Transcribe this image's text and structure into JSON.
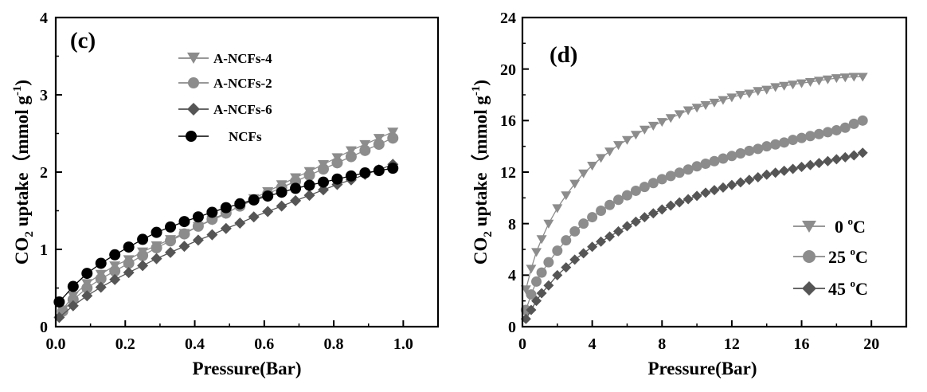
{
  "chart_data": [
    {
      "panel": "(c)",
      "type": "scatter",
      "xlabel": "Pressure(Bar)",
      "ylabel": "CO2 uptake（mmol g-1)",
      "ylabel_parts": {
        "pre": "CO",
        "sub": "2",
        "mid": " uptake（mmol g",
        "sup": "-1",
        "post": ")"
      },
      "xlim": [
        0,
        1.1
      ],
      "ylim": [
        0,
        4
      ],
      "xticks": [
        "0.0",
        "0.2",
        "0.4",
        "0.6",
        "0.8",
        "1.0"
      ],
      "yticks": [
        "0",
        "1",
        "2",
        "3",
        "4"
      ],
      "legend_position": "top-center",
      "legend": [
        "A-NCFs-4",
        "A-NCFs-2",
        "A-NCFs-6",
        "NCFs"
      ],
      "series": [
        {
          "name": "A-NCFs-4",
          "marker": "triangle-down",
          "color": "#8c8c8c",
          "x": [
            0.02,
            0.05,
            0.09,
            0.13,
            0.17,
            0.21,
            0.25,
            0.29,
            0.33,
            0.37,
            0.41,
            0.45,
            0.49,
            0.53,
            0.57,
            0.61,
            0.65,
            0.69,
            0.73,
            0.77,
            0.81,
            0.85,
            0.89,
            0.93,
            0.97
          ],
          "values": [
            0.22,
            0.4,
            0.56,
            0.68,
            0.79,
            0.87,
            0.97,
            1.05,
            1.13,
            1.21,
            1.3,
            1.38,
            1.46,
            1.57,
            1.66,
            1.75,
            1.84,
            1.93,
            2.01,
            2.1,
            2.19,
            2.28,
            2.36,
            2.44,
            2.52
          ]
        },
        {
          "name": "A-NCFs-2",
          "marker": "circle",
          "color": "#8c8c8c",
          "x": [
            0.02,
            0.05,
            0.09,
            0.13,
            0.17,
            0.21,
            0.25,
            0.29,
            0.33,
            0.37,
            0.41,
            0.45,
            0.49,
            0.53,
            0.57,
            0.61,
            0.65,
            0.69,
            0.73,
            0.77,
            0.81,
            0.85,
            0.89,
            0.93,
            0.97
          ],
          "values": [
            0.2,
            0.35,
            0.5,
            0.62,
            0.72,
            0.82,
            0.92,
            1.02,
            1.11,
            1.2,
            1.3,
            1.39,
            1.47,
            1.56,
            1.64,
            1.72,
            1.8,
            1.88,
            1.96,
            2.04,
            2.12,
            2.2,
            2.28,
            2.36,
            2.44
          ]
        },
        {
          "name": "A-NCFs-6",
          "marker": "diamond",
          "color": "#555555",
          "x": [
            0.01,
            0.05,
            0.09,
            0.13,
            0.17,
            0.21,
            0.25,
            0.29,
            0.33,
            0.37,
            0.41,
            0.45,
            0.49,
            0.53,
            0.57,
            0.61,
            0.65,
            0.69,
            0.73,
            0.77,
            0.81,
            0.85,
            0.89,
            0.93,
            0.97
          ],
          "values": [
            0.12,
            0.27,
            0.4,
            0.51,
            0.61,
            0.7,
            0.79,
            0.88,
            0.96,
            1.04,
            1.12,
            1.19,
            1.27,
            1.34,
            1.42,
            1.49,
            1.56,
            1.63,
            1.7,
            1.77,
            1.84,
            1.9,
            1.97,
            2.03,
            2.1
          ]
        },
        {
          "name": "NCFs",
          "marker": "circle",
          "color": "#000000",
          "x": [
            0.01,
            0.05,
            0.09,
            0.13,
            0.17,
            0.21,
            0.25,
            0.29,
            0.33,
            0.37,
            0.41,
            0.45,
            0.49,
            0.53,
            0.57,
            0.61,
            0.65,
            0.69,
            0.73,
            0.77,
            0.81,
            0.85,
            0.89,
            0.93,
            0.97
          ],
          "values": [
            0.32,
            0.52,
            0.69,
            0.82,
            0.93,
            1.03,
            1.13,
            1.22,
            1.29,
            1.36,
            1.42,
            1.48,
            1.54,
            1.59,
            1.64,
            1.69,
            1.74,
            1.79,
            1.83,
            1.87,
            1.91,
            1.95,
            1.99,
            2.02,
            2.05
          ]
        }
      ]
    },
    {
      "panel": "(d)",
      "type": "scatter",
      "xlabel": "Pressure(Bar)",
      "ylabel": "CO2 uptake（mmol g-1)",
      "ylabel_parts": {
        "pre": "CO",
        "sub": "2",
        "mid": " uptake（mmol g",
        "sup": "-1",
        "post": ")"
      },
      "xlim": [
        0,
        22
      ],
      "ylim": [
        0,
        24
      ],
      "xticks": [
        "0",
        "4",
        "8",
        "12",
        "16",
        "20"
      ],
      "yticks": [
        "0",
        "4",
        "8",
        "12",
        "16",
        "20",
        "24"
      ],
      "legend_position": "bottom-right",
      "legend": [
        "0 °C",
        "25 °C",
        "45 °C"
      ],
      "legend_parts": [
        {
          "num": "0 ",
          "deg": "o",
          "unit": "C"
        },
        {
          "num": "25 ",
          "deg": "o",
          "unit": "C"
        },
        {
          "num": "45 ",
          "deg": "o",
          "unit": "C"
        }
      ],
      "series": [
        {
          "name": "0 °C",
          "marker": "triangle-down",
          "color": "#8c8c8c",
          "x": [
            0.2,
            0.5,
            0.8,
            1.1,
            1.5,
            2,
            2.5,
            3,
            3.5,
            4,
            4.5,
            5,
            5.5,
            6,
            6.5,
            7,
            7.5,
            8,
            8.5,
            9,
            9.5,
            10,
            10.5,
            11,
            11.5,
            12,
            12.5,
            13,
            13.5,
            14,
            14.5,
            15,
            15.5,
            16,
            16.5,
            17,
            17.5,
            18,
            18.5,
            19,
            19.5
          ],
          "values": [
            2.9,
            4.5,
            5.8,
            6.8,
            8.0,
            9.2,
            10.2,
            11.1,
            11.9,
            12.5,
            13.1,
            13.6,
            14.1,
            14.5,
            14.9,
            15.3,
            15.6,
            15.9,
            16.2,
            16.5,
            16.8,
            17.0,
            17.2,
            17.4,
            17.6,
            17.8,
            18.0,
            18.1,
            18.3,
            18.4,
            18.6,
            18.7,
            18.8,
            18.9,
            19.0,
            19.1,
            19.2,
            19.3,
            19.35,
            19.4,
            19.4
          ]
        },
        {
          "name": "25 °C",
          "marker": "circle",
          "color": "#8c8c8c",
          "x": [
            0.2,
            0.5,
            0.8,
            1.1,
            1.5,
            2,
            2.5,
            3,
            3.5,
            4,
            4.5,
            5,
            5.5,
            6,
            6.5,
            7,
            7.5,
            8,
            8.5,
            9,
            9.5,
            10,
            10.5,
            11,
            11.5,
            12,
            12.5,
            13,
            13.5,
            14,
            14.5,
            15,
            15.5,
            16,
            16.5,
            17,
            17.5,
            18,
            18.5,
            19,
            19.5
          ],
          "values": [
            1.3,
            2.5,
            3.5,
            4.2,
            5.0,
            5.9,
            6.7,
            7.4,
            8.0,
            8.5,
            9.0,
            9.45,
            9.85,
            10.2,
            10.55,
            10.85,
            11.15,
            11.45,
            11.7,
            11.95,
            12.2,
            12.45,
            12.65,
            12.85,
            13.05,
            13.25,
            13.45,
            13.65,
            13.8,
            14.0,
            14.15,
            14.3,
            14.5,
            14.65,
            14.8,
            14.95,
            15.1,
            15.25,
            15.45,
            15.75,
            16.0
          ]
        },
        {
          "name": "45 °C",
          "marker": "diamond",
          "color": "#555555",
          "x": [
            0.2,
            0.5,
            0.8,
            1.1,
            1.5,
            2,
            2.5,
            3,
            3.5,
            4,
            4.5,
            5,
            5.5,
            6,
            6.5,
            7,
            7.5,
            8,
            8.5,
            9,
            9.5,
            10,
            10.5,
            11,
            11.5,
            12,
            12.5,
            13,
            13.5,
            14,
            14.5,
            15,
            15.5,
            16,
            16.5,
            17,
            17.5,
            18,
            18.5,
            19,
            19.5
          ],
          "values": [
            0.6,
            1.3,
            2.0,
            2.6,
            3.2,
            4.0,
            4.6,
            5.2,
            5.7,
            6.2,
            6.6,
            7.0,
            7.4,
            7.8,
            8.15,
            8.5,
            8.8,
            9.1,
            9.4,
            9.65,
            9.9,
            10.15,
            10.4,
            10.6,
            10.8,
            11.0,
            11.2,
            11.4,
            11.6,
            11.8,
            11.95,
            12.1,
            12.25,
            12.4,
            12.55,
            12.7,
            12.85,
            13.0,
            13.15,
            13.3,
            13.5
          ]
        }
      ]
    }
  ]
}
